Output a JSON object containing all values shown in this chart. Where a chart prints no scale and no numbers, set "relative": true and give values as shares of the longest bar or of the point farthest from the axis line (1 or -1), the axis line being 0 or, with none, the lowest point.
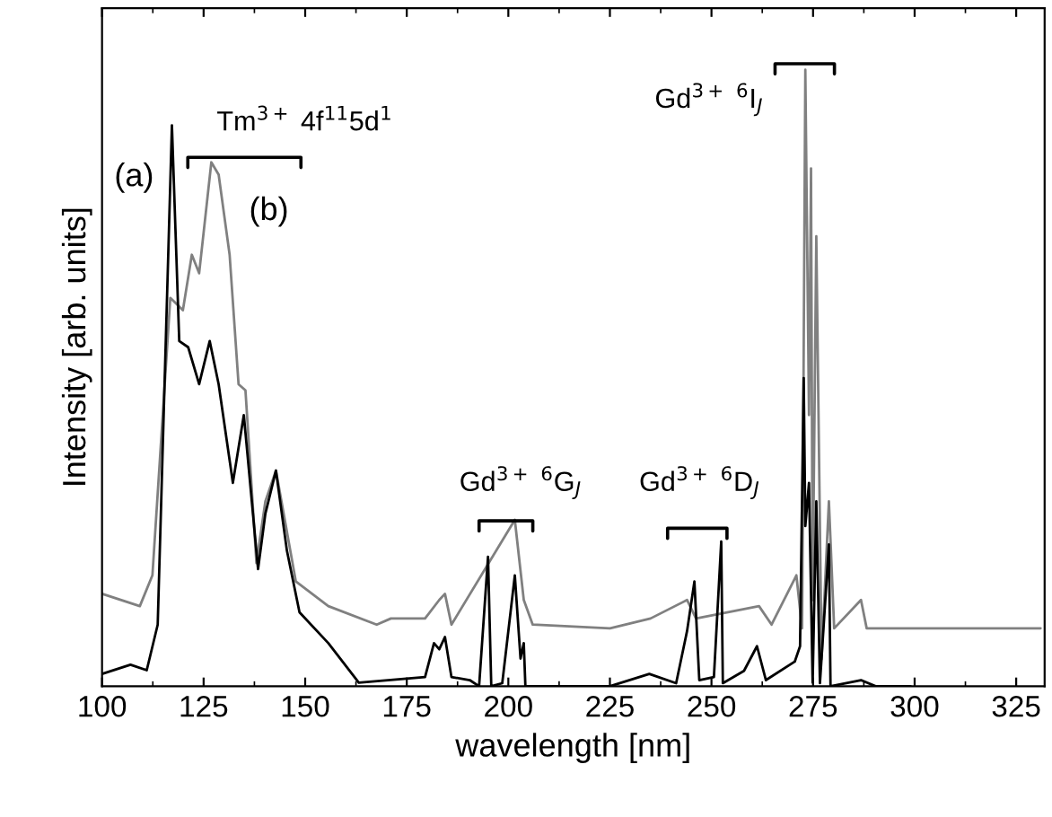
{
  "chart_data": {
    "type": "line",
    "relative": true,
    "xlabel": "wavelength [nm]",
    "ylabel": "Intensity [arb. units]",
    "xlim": [
      100,
      332
    ],
    "xticks": [
      100,
      125,
      150,
      175,
      200,
      225,
      250,
      275,
      300,
      325
    ],
    "tick_labels": "x",
    "grid": false,
    "line_style": "solid",
    "marker": "none",
    "series": [
      {
        "color": "#000000",
        "x": [
          100,
          107,
          111,
          113.7,
          117.2,
          119,
          121.2,
          123.9,
          126.5,
          128.7,
          132.2,
          134.9,
          138.4,
          140.2,
          142.8,
          145.5,
          148.6,
          155.7,
          163.2,
          179.5,
          181.7,
          183,
          184.4,
          186,
          190.5,
          192.8,
          195,
          195.8,
          198.5,
          201.6,
          203,
          203.8,
          204.2,
          225,
          234.7,
          241.3,
          244,
          245.8,
          247,
          250.6,
          252.4,
          252.8,
          258,
          261.2,
          263.4,
          270.5,
          271.8,
          272.7,
          273.1,
          274,
          274.9,
          275.8,
          276.7,
          278.9,
          279.3,
          286.8,
          290.4,
          299
        ],
        "values": [
          0.02,
          0.035,
          0.026,
          0.1,
          0.91,
          0.56,
          0.55,
          0.49,
          0.56,
          0.49,
          0.33,
          0.44,
          0.19,
          0.28,
          0.35,
          0.22,
          0.12,
          0.07,
          0.006,
          0.015,
          0.07,
          0.06,
          0.08,
          0.015,
          0.01,
          0,
          0.21,
          0,
          0.005,
          0.18,
          0.045,
          0.07,
          0,
          0,
          0.02,
          0.005,
          0.09,
          0.17,
          0.01,
          0.015,
          0.235,
          0.005,
          0.025,
          0.065,
          0.01,
          0.04,
          0.065,
          0.5,
          0.26,
          0.33,
          0.006,
          0.3,
          0.005,
          0.23,
          0,
          0.01,
          0,
          0
        ]
      },
      {
        "color": "#808080",
        "x": [
          100,
          109.3,
          112.4,
          116.8,
          119.9,
          122.1,
          123.9,
          126.9,
          128.7,
          131.4,
          133.6,
          135.3,
          138,
          140.2,
          142.8,
          147.7,
          155.7,
          167.6,
          171.1,
          179.5,
          183,
          184.4,
          186,
          201.6,
          203.8,
          206,
          225,
          235,
          244,
          246.2,
          261.7,
          264.8,
          270.9,
          272.3,
          273.1,
          274,
          274.5,
          274.9,
          275.8,
          277.1,
          278.9,
          280.2,
          286.8,
          288.2,
          331
        ],
        "values": [
          0.15,
          0.13,
          0.18,
          0.63,
          0.61,
          0.7,
          0.67,
          0.85,
          0.83,
          0.7,
          0.49,
          0.48,
          0.2,
          0.3,
          0.35,
          0.17,
          0.13,
          0.1,
          0.11,
          0.11,
          0.14,
          0.15,
          0.1,
          0.27,
          0.14,
          0.1,
          0.094,
          0.11,
          0.14,
          0.11,
          0.13,
          0.1,
          0.18,
          0.094,
          1.0,
          0.44,
          0.84,
          0.14,
          0.73,
          0.044,
          0.3,
          0.094,
          0.14,
          0.094,
          0.094
        ]
      }
    ],
    "annotations": [
      "(a)",
      "(b)",
      "Tm$^{3+}$ 4f$^{11}$5d$^{1}$",
      "Gd$^{3+}$ $^{6}$G$_{J}$",
      "Gd$^{3+}$ $^{6}$D$_{J}$",
      "Gd$^{3+}$ $^{6}$I$_{J}$"
    ]
  }
}
